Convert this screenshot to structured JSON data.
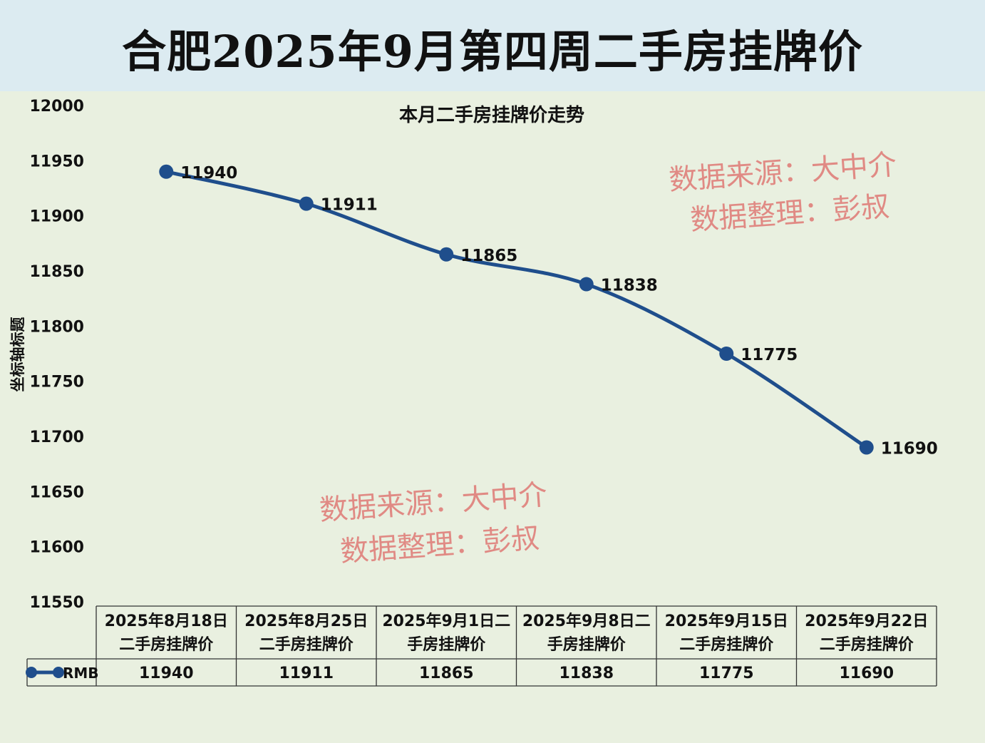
{
  "page_title": "合肥2025年9月第四周二手房挂牌价",
  "watermark": {
    "line1": "数据来源：大中介",
    "line2": "数据整理：彭叔",
    "color": "#e08a84"
  },
  "colors": {
    "banner_bg": "#dcebf1",
    "plot_bg": "#e9f0e0",
    "series_line": "#1f4e8c"
  },
  "chart_data": {
    "type": "line",
    "title": "本月二手房挂牌价走势",
    "ylabel": "坐标轴标题",
    "xlabel": "",
    "ylim": [
      11550,
      12000
    ],
    "yticks": [
      11550,
      11600,
      11650,
      11700,
      11750,
      11800,
      11850,
      11900,
      11950,
      12000
    ],
    "grid": false,
    "categories": [
      [
        "2025年8月18日",
        "二手房挂牌价"
      ],
      [
        "2025年8月25日",
        "二手房挂牌价"
      ],
      [
        "2025年9月1日二",
        "手房挂牌价"
      ],
      [
        "2025年9月8日二",
        "手房挂牌价"
      ],
      [
        "2025年9月15日",
        "二手房挂牌价"
      ],
      [
        "2025年9月22日",
        "二手房挂牌价"
      ]
    ],
    "series": [
      {
        "name": "RMB",
        "values": [
          11940,
          11911,
          11865,
          11838,
          11775,
          11690
        ]
      }
    ],
    "data_table": true,
    "legend": "in data table"
  }
}
